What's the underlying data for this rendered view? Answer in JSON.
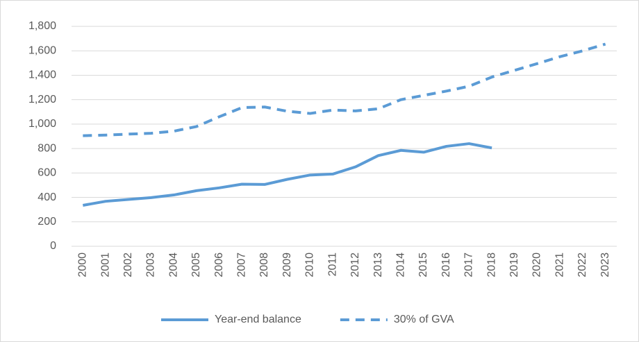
{
  "chart_data": {
    "type": "line",
    "categories": [
      "2000",
      "2001",
      "2002",
      "2003",
      "2004",
      "2005",
      "2006",
      "2007",
      "2008",
      "2009",
      "2010",
      "2011",
      "2012",
      "2013",
      "2014",
      "2015",
      "2016",
      "2017",
      "2018",
      "2019",
      "2020",
      "2021",
      "2022",
      "2023"
    ],
    "series": [
      {
        "name": "Year-end balance",
        "color": "#5b9bd5",
        "dash": false,
        "values": [
          335,
          368,
          383,
          398,
          420,
          455,
          478,
          508,
          506,
          548,
          583,
          591,
          650,
          742,
          785,
          770,
          818,
          840,
          805,
          null,
          null,
          null,
          null,
          null
        ]
      },
      {
        "name": "30% of GVA",
        "color": "#5b9bd5",
        "dash": true,
        "values": [
          905,
          910,
          918,
          925,
          942,
          980,
          1060,
          1135,
          1140,
          1105,
          1087,
          1115,
          1108,
          1125,
          1200,
          1235,
          1270,
          1310,
          1385,
          1440,
          1495,
          1552,
          1600,
          1655
        ]
      }
    ],
    "ylim": [
      0,
      1800
    ],
    "yticks": [
      0,
      200,
      400,
      600,
      800,
      {
        "value": 1000,
        "label": "1,000"
      },
      {
        "value": 1200,
        "label": "1,200"
      },
      {
        "value": 1400,
        "label": "1,400"
      },
      {
        "value": 1600,
        "label": "1,600"
      },
      {
        "value": 1800,
        "label": "1,800"
      }
    ],
    "grid": true,
    "legend": "bottom"
  }
}
